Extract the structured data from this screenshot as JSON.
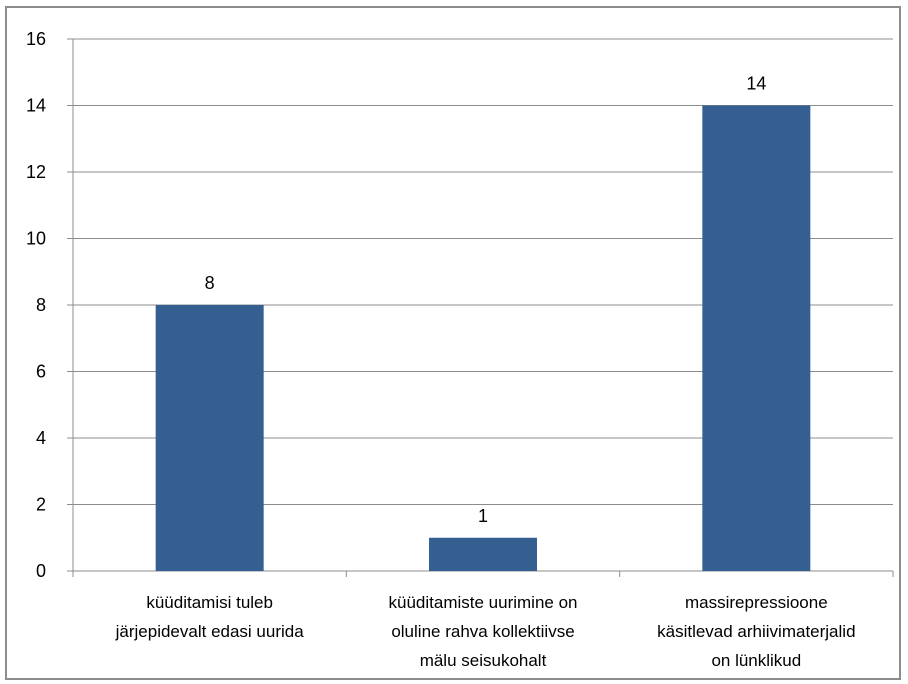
{
  "chart_data": {
    "type": "bar",
    "categories": [
      [
        "küüditamisi tuleb",
        "järjepidevalt edasi uurida"
      ],
      [
        "küüditamiste uurimine on",
        "oluline rahva kollektiivse",
        "mälu seisukohalt"
      ],
      [
        "massirepressioone",
        "käsitlevad arhiivimaterjalid",
        "on lünklikud"
      ]
    ],
    "values": [
      8,
      1,
      14
    ],
    "ylim": [
      0,
      16
    ],
    "yticks": [
      0,
      2,
      4,
      6,
      8,
      10,
      12,
      14,
      16
    ],
    "grid": true,
    "legend": "none",
    "bar_color": "#355f91",
    "grid_color": "#8c8c8c",
    "title": "",
    "xlabel": "",
    "ylabel": ""
  }
}
